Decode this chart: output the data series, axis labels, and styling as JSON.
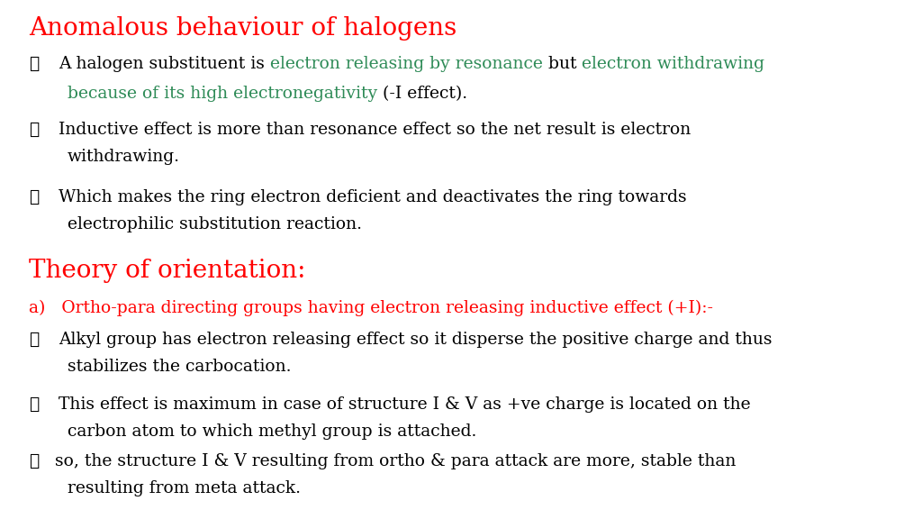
{
  "background_color": "#ffffff",
  "title": "Anomalous behaviour of halogens",
  "title_color": "#ff0000",
  "title_fontsize": 20,
  "section2_title": "Theory of orientation:",
  "section2_color": "#ff0000",
  "section2_fontsize": 20,
  "item_a_text": "a)   Ortho-para directing groups having electron releasing inductive effect (+I):-",
  "item_a_color": "#ff0000",
  "item_a_fontsize": 13.5,
  "body_fontsize": 13.5,
  "body_color": "#000000",
  "green_color": "#2e8b57",
  "blue_color": "#3399ff",
  "bullet": "➤"
}
